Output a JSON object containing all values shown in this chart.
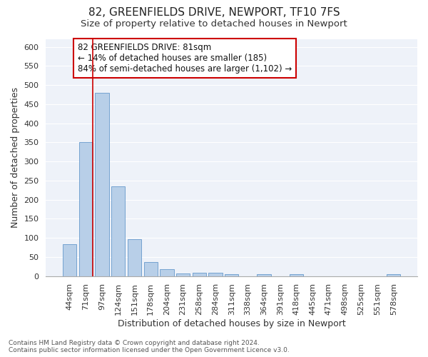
{
  "title_line1": "82, GREENFIELDS DRIVE, NEWPORT, TF10 7FS",
  "title_line2": "Size of property relative to detached houses in Newport",
  "xlabel": "Distribution of detached houses by size in Newport",
  "ylabel": "Number of detached properties",
  "categories": [
    "44sqm",
    "71sqm",
    "97sqm",
    "124sqm",
    "151sqm",
    "178sqm",
    "204sqm",
    "231sqm",
    "258sqm",
    "284sqm",
    "311sqm",
    "338sqm",
    "364sqm",
    "391sqm",
    "418sqm",
    "445sqm",
    "471sqm",
    "498sqm",
    "525sqm",
    "551sqm",
    "578sqm"
  ],
  "values": [
    83,
    350,
    480,
    235,
    97,
    37,
    18,
    7,
    8,
    9,
    4,
    0,
    5,
    0,
    5,
    0,
    0,
    0,
    0,
    0,
    4
  ],
  "bar_color": "#b8cfe8",
  "bar_edgecolor": "#6699cc",
  "background_color": "#eef2f9",
  "grid_color": "#ffffff",
  "vline_color": "#cc0000",
  "vline_x_index": 1,
  "annotation_text": "82 GREENFIELDS DRIVE: 81sqm\n← 14% of detached houses are smaller (185)\n84% of semi-detached houses are larger (1,102) →",
  "annotation_box_edgecolor": "#cc0000",
  "ylim": [
    0,
    620
  ],
  "yticks": [
    0,
    50,
    100,
    150,
    200,
    250,
    300,
    350,
    400,
    450,
    500,
    550,
    600
  ],
  "footer_line1": "Contains HM Land Registry data © Crown copyright and database right 2024.",
  "footer_line2": "Contains public sector information licensed under the Open Government Licence v3.0.",
  "title_fontsize": 11,
  "subtitle_fontsize": 9.5,
  "label_fontsize": 9,
  "tick_fontsize": 8,
  "annotation_fontsize": 8.5,
  "footer_fontsize": 6.5
}
